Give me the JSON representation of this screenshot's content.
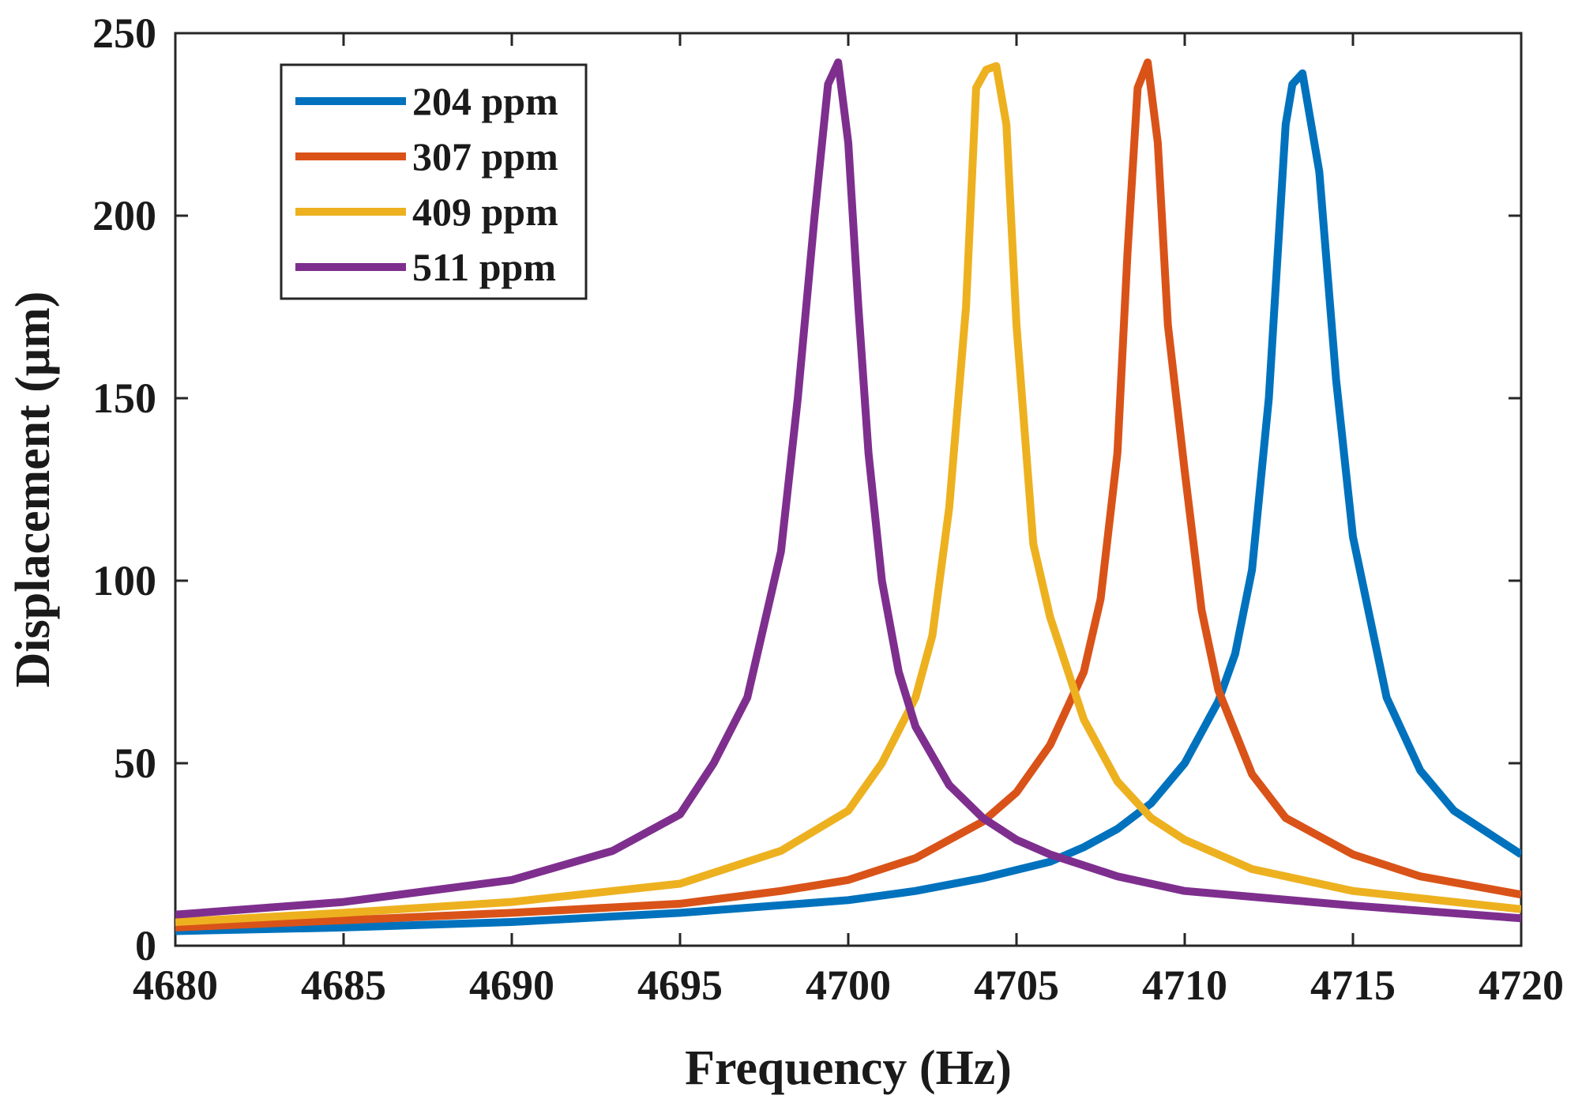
{
  "chart_data": {
    "type": "line",
    "title": "",
    "xlabel": "Frequency (Hz)",
    "ylabel": "Displacement (μm)",
    "xlim": [
      4680,
      4720
    ],
    "ylim": [
      0,
      250
    ],
    "xticks": [
      4680,
      4685,
      4690,
      4695,
      4700,
      4705,
      4710,
      4715,
      4720
    ],
    "yticks": [
      0,
      50,
      100,
      150,
      200,
      250
    ],
    "grid": false,
    "legend_position": "top-left",
    "series": [
      {
        "name": "204 ppm",
        "color": "#0072BD",
        "x": [
          4680,
          4685,
          4690,
          4695,
          4700,
          4702,
          4704,
          4706,
          4707,
          4708,
          4709,
          4710,
          4711,
          4711.5,
          4712,
          4712.5,
          4713,
          4713.2,
          4713.5,
          4714,
          4714.5,
          4715,
          4716,
          4717,
          4718,
          4720
        ],
        "y": [
          4,
          5,
          6.5,
          9,
          12.5,
          15,
          18.5,
          23,
          27,
          32,
          39,
          50,
          67,
          80,
          103,
          150,
          225,
          236,
          239,
          212,
          155,
          112,
          68,
          48,
          37,
          25
        ]
      },
      {
        "name": "307 ppm",
        "color": "#D95319",
        "x": [
          4680,
          4685,
          4690,
          4695,
          4698,
          4700,
          4702,
          4704,
          4705,
          4706,
          4707,
          4707.5,
          4708,
          4708.3,
          4708.6,
          4708.9,
          4709.2,
          4709.5,
          4710,
          4710.5,
          4711,
          4712,
          4713,
          4715,
          4717,
          4720
        ],
        "y": [
          5,
          7,
          9,
          11.5,
          15,
          18,
          24,
          34,
          42,
          55,
          75,
          95,
          135,
          190,
          235,
          242,
          220,
          170,
          130,
          92,
          70,
          47,
          35,
          25,
          19,
          14
        ]
      },
      {
        "name": "409 ppm",
        "color": "#EDB120",
        "x": [
          4680,
          4685,
          4690,
          4695,
          4698,
          4700,
          4701,
          4702,
          4702.5,
          4703,
          4703.5,
          4703.8,
          4704.1,
          4704.4,
          4704.7,
          4705,
          4705.5,
          4706,
          4707,
          4708,
          4709,
          4710,
          4712,
          4715,
          4720
        ],
        "y": [
          6.5,
          9,
          12,
          17,
          26,
          37,
          50,
          68,
          85,
          120,
          175,
          235,
          240,
          241,
          225,
          170,
          110,
          90,
          62,
          45,
          35,
          29,
          21,
          15,
          10
        ]
      },
      {
        "name": "511 ppm",
        "color": "#7E2F8E",
        "x": [
          4680,
          4685,
          4690,
          4693,
          4695,
          4696,
          4697,
          4698,
          4698.5,
          4699,
          4699.4,
          4699.7,
          4700,
          4700.3,
          4700.6,
          4701,
          4701.5,
          4702,
          4703,
          4704,
          4705,
          4706,
          4708,
          4710,
          4715,
          4720
        ],
        "y": [
          8.5,
          12,
          18,
          26,
          36,
          50,
          68,
          108,
          150,
          200,
          236,
          242,
          220,
          175,
          135,
          100,
          75,
          60,
          44,
          35,
          29,
          25,
          19,
          15,
          11,
          7.5
        ]
      }
    ]
  }
}
